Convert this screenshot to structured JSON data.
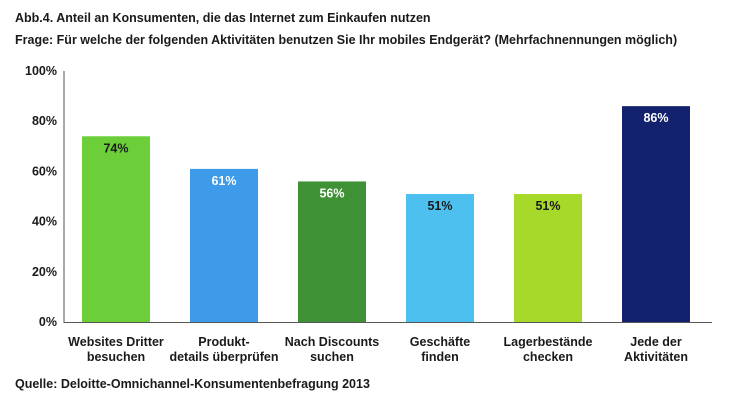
{
  "title": "Abb.4. Anteil an Konsumenten, die das Internet zum Einkaufen nutzen",
  "subtitle": "Frage: Für welche der folgenden Aktivitäten benutzen Sie Ihr mobiles Endgerät? (Mehrfachnennungen möglich)",
  "source": "Quelle: Deloitte-Omnichannel-Konsumentenbefragung 2013",
  "chart_data": {
    "type": "bar",
    "categories": [
      "Websites Dritter besuchen",
      "Produkt-details überprüfen",
      "Nach Discounts suchen",
      "Geschäfte finden",
      "Lagerbestände checken",
      "Jede der Aktivitäten"
    ],
    "category_lines": [
      [
        "Websites Dritter",
        "besuchen"
      ],
      [
        "Produkt-",
        "details überprüfen"
      ],
      [
        "Nach Discounts",
        "suchen"
      ],
      [
        "Geschäfte",
        "finden"
      ],
      [
        "Lagerbestände",
        "checken"
      ],
      [
        "Jede der",
        "Aktivitäten"
      ]
    ],
    "values": [
      74,
      61,
      56,
      51,
      51,
      86
    ],
    "data_labels": [
      "74%",
      "61%",
      "56%",
      "51%",
      "51%",
      "86%"
    ],
    "colors": [
      "#6ccf3a",
      "#3d9be9",
      "#3f9135",
      "#4ec0f0",
      "#a6d92a",
      "#13226e"
    ],
    "label_colors": [
      "#1a1a1a",
      "#ffffff",
      "#ffffff",
      "#1a1a1a",
      "#1a1a1a",
      "#ffffff"
    ],
    "ylim": [
      0,
      100
    ],
    "yticks": [
      0,
      20,
      40,
      60,
      80,
      100
    ],
    "ytick_labels": [
      "0%",
      "20%",
      "40%",
      "60%",
      "80%",
      "100%"
    ],
    "grid": false,
    "legend": "none"
  }
}
